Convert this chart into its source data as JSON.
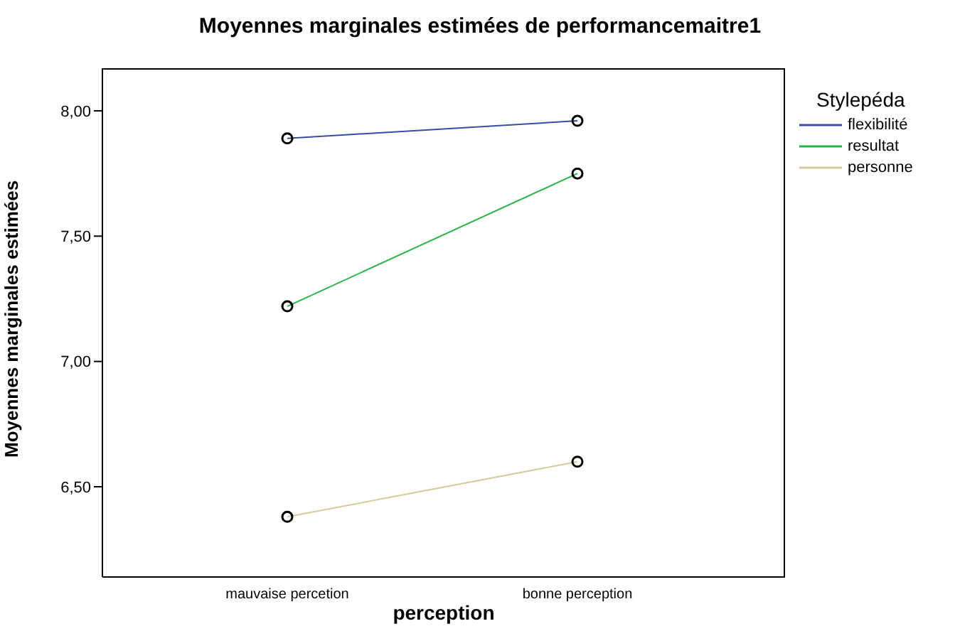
{
  "chart_data": {
    "type": "line",
    "title": "Moyennes marginales estimées de performancemaitre1",
    "xlabel": "perception",
    "ylabel": "Moyennes marginales estimées",
    "legend_title": "Stylepéda",
    "categories": [
      "mauvaise percetion",
      "bonne perception"
    ],
    "series": [
      {
        "name": "flexibilité",
        "color": "#3a4ca8",
        "values": [
          7.89,
          7.96
        ]
      },
      {
        "name": "resultat",
        "color": "#2db34a",
        "values": [
          7.22,
          7.75
        ]
      },
      {
        "name": "personne",
        "color": "#d4cc9a",
        "values": [
          6.38,
          6.6
        ]
      }
    ],
    "ylim": [
      6.14,
      8.17
    ],
    "yticks": [
      {
        "value": 6.5,
        "label": "6,50"
      },
      {
        "value": 7,
        "label": "7,00"
      },
      {
        "value": 7.5,
        "label": "7,50"
      },
      {
        "value": 8,
        "label": "8,00"
      }
    ],
    "grid": false,
    "legend": "top right",
    "marker": "circle",
    "line_style": "solid"
  }
}
